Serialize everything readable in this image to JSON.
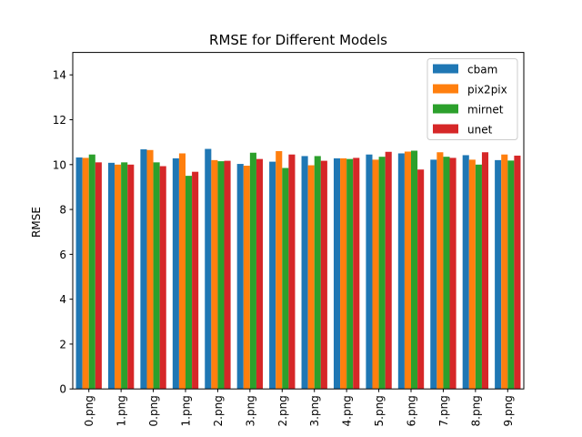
{
  "chart_data": {
    "type": "bar",
    "title": "RMSE for Different Models",
    "xlabel": "",
    "ylabel": "RMSE",
    "ylim": [
      0,
      15
    ],
    "yticks": [
      0,
      2,
      4,
      6,
      8,
      10,
      12,
      14
    ],
    "grid": false,
    "legend_position": "top-right",
    "categories": [
      "0.png",
      "1.png",
      "0.png",
      "1.png",
      "2.png",
      "3.png",
      "2.png",
      "3.png",
      "4.png",
      "5.png",
      "6.png",
      "7.png",
      "8.png",
      "9.png"
    ],
    "series": [
      {
        "name": "cbam",
        "color": "#1f77b4",
        "values": [
          10.32,
          10.08,
          10.68,
          10.28,
          10.7,
          10.03,
          10.13,
          10.38,
          10.28,
          10.45,
          10.5,
          10.22,
          10.42,
          10.2
        ]
      },
      {
        "name": "pix2pix",
        "color": "#ff7f0e",
        "values": [
          10.3,
          10.0,
          10.65,
          10.5,
          10.2,
          9.95,
          10.6,
          9.97,
          10.28,
          10.22,
          10.58,
          10.55,
          10.22,
          10.45
        ]
      },
      {
        "name": "mirnet",
        "color": "#2ca02c",
        "values": [
          10.45,
          10.1,
          10.1,
          9.5,
          10.15,
          10.53,
          9.85,
          10.38,
          10.25,
          10.35,
          10.62,
          10.35,
          10.0,
          10.18
        ]
      },
      {
        "name": "unet",
        "color": "#d62728",
        "values": [
          10.1,
          10.0,
          9.93,
          9.68,
          10.17,
          10.25,
          10.45,
          10.17,
          10.3,
          10.57,
          9.78,
          10.3,
          10.55,
          10.4
        ]
      }
    ]
  }
}
